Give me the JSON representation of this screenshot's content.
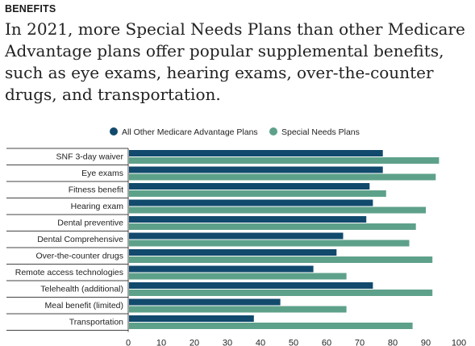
{
  "kicker": "BENEFITS",
  "headline": "In 2021, more Special Needs Plans than other Medicare Advantage plans offer popular supplemental benefits, such as eye exams, hearing exams, over-the-counter drugs, and transportation.",
  "colors": {
    "series1": "#114a6c",
    "series2": "#5ea18a",
    "rule": "#444444"
  },
  "chart_data": {
    "type": "bar",
    "orientation": "horizontal",
    "categories": [
      "SNF 3-day waiver",
      "Eye exams",
      "Fitness benefit",
      "Hearing exam",
      "Dental preventive",
      "Dental Comprehensive",
      "Over-the-counter drugs",
      "Remote access technologies",
      "Telehealth (additional)",
      "Meal benefit (limited)",
      "Transportation"
    ],
    "series": [
      {
        "name": "All Other Medicare Advantage Plans",
        "values": [
          77,
          77,
          73,
          74,
          72,
          65,
          63,
          56,
          74,
          46,
          38
        ]
      },
      {
        "name": "Special Needs Plans",
        "values": [
          94,
          93,
          78,
          90,
          87,
          85,
          92,
          66,
          92,
          66,
          86
        ]
      }
    ],
    "xlim": [
      0,
      100
    ],
    "xticks": [
      0,
      10,
      20,
      30,
      40,
      50,
      60,
      70,
      80,
      90,
      100
    ],
    "legend": "top"
  }
}
